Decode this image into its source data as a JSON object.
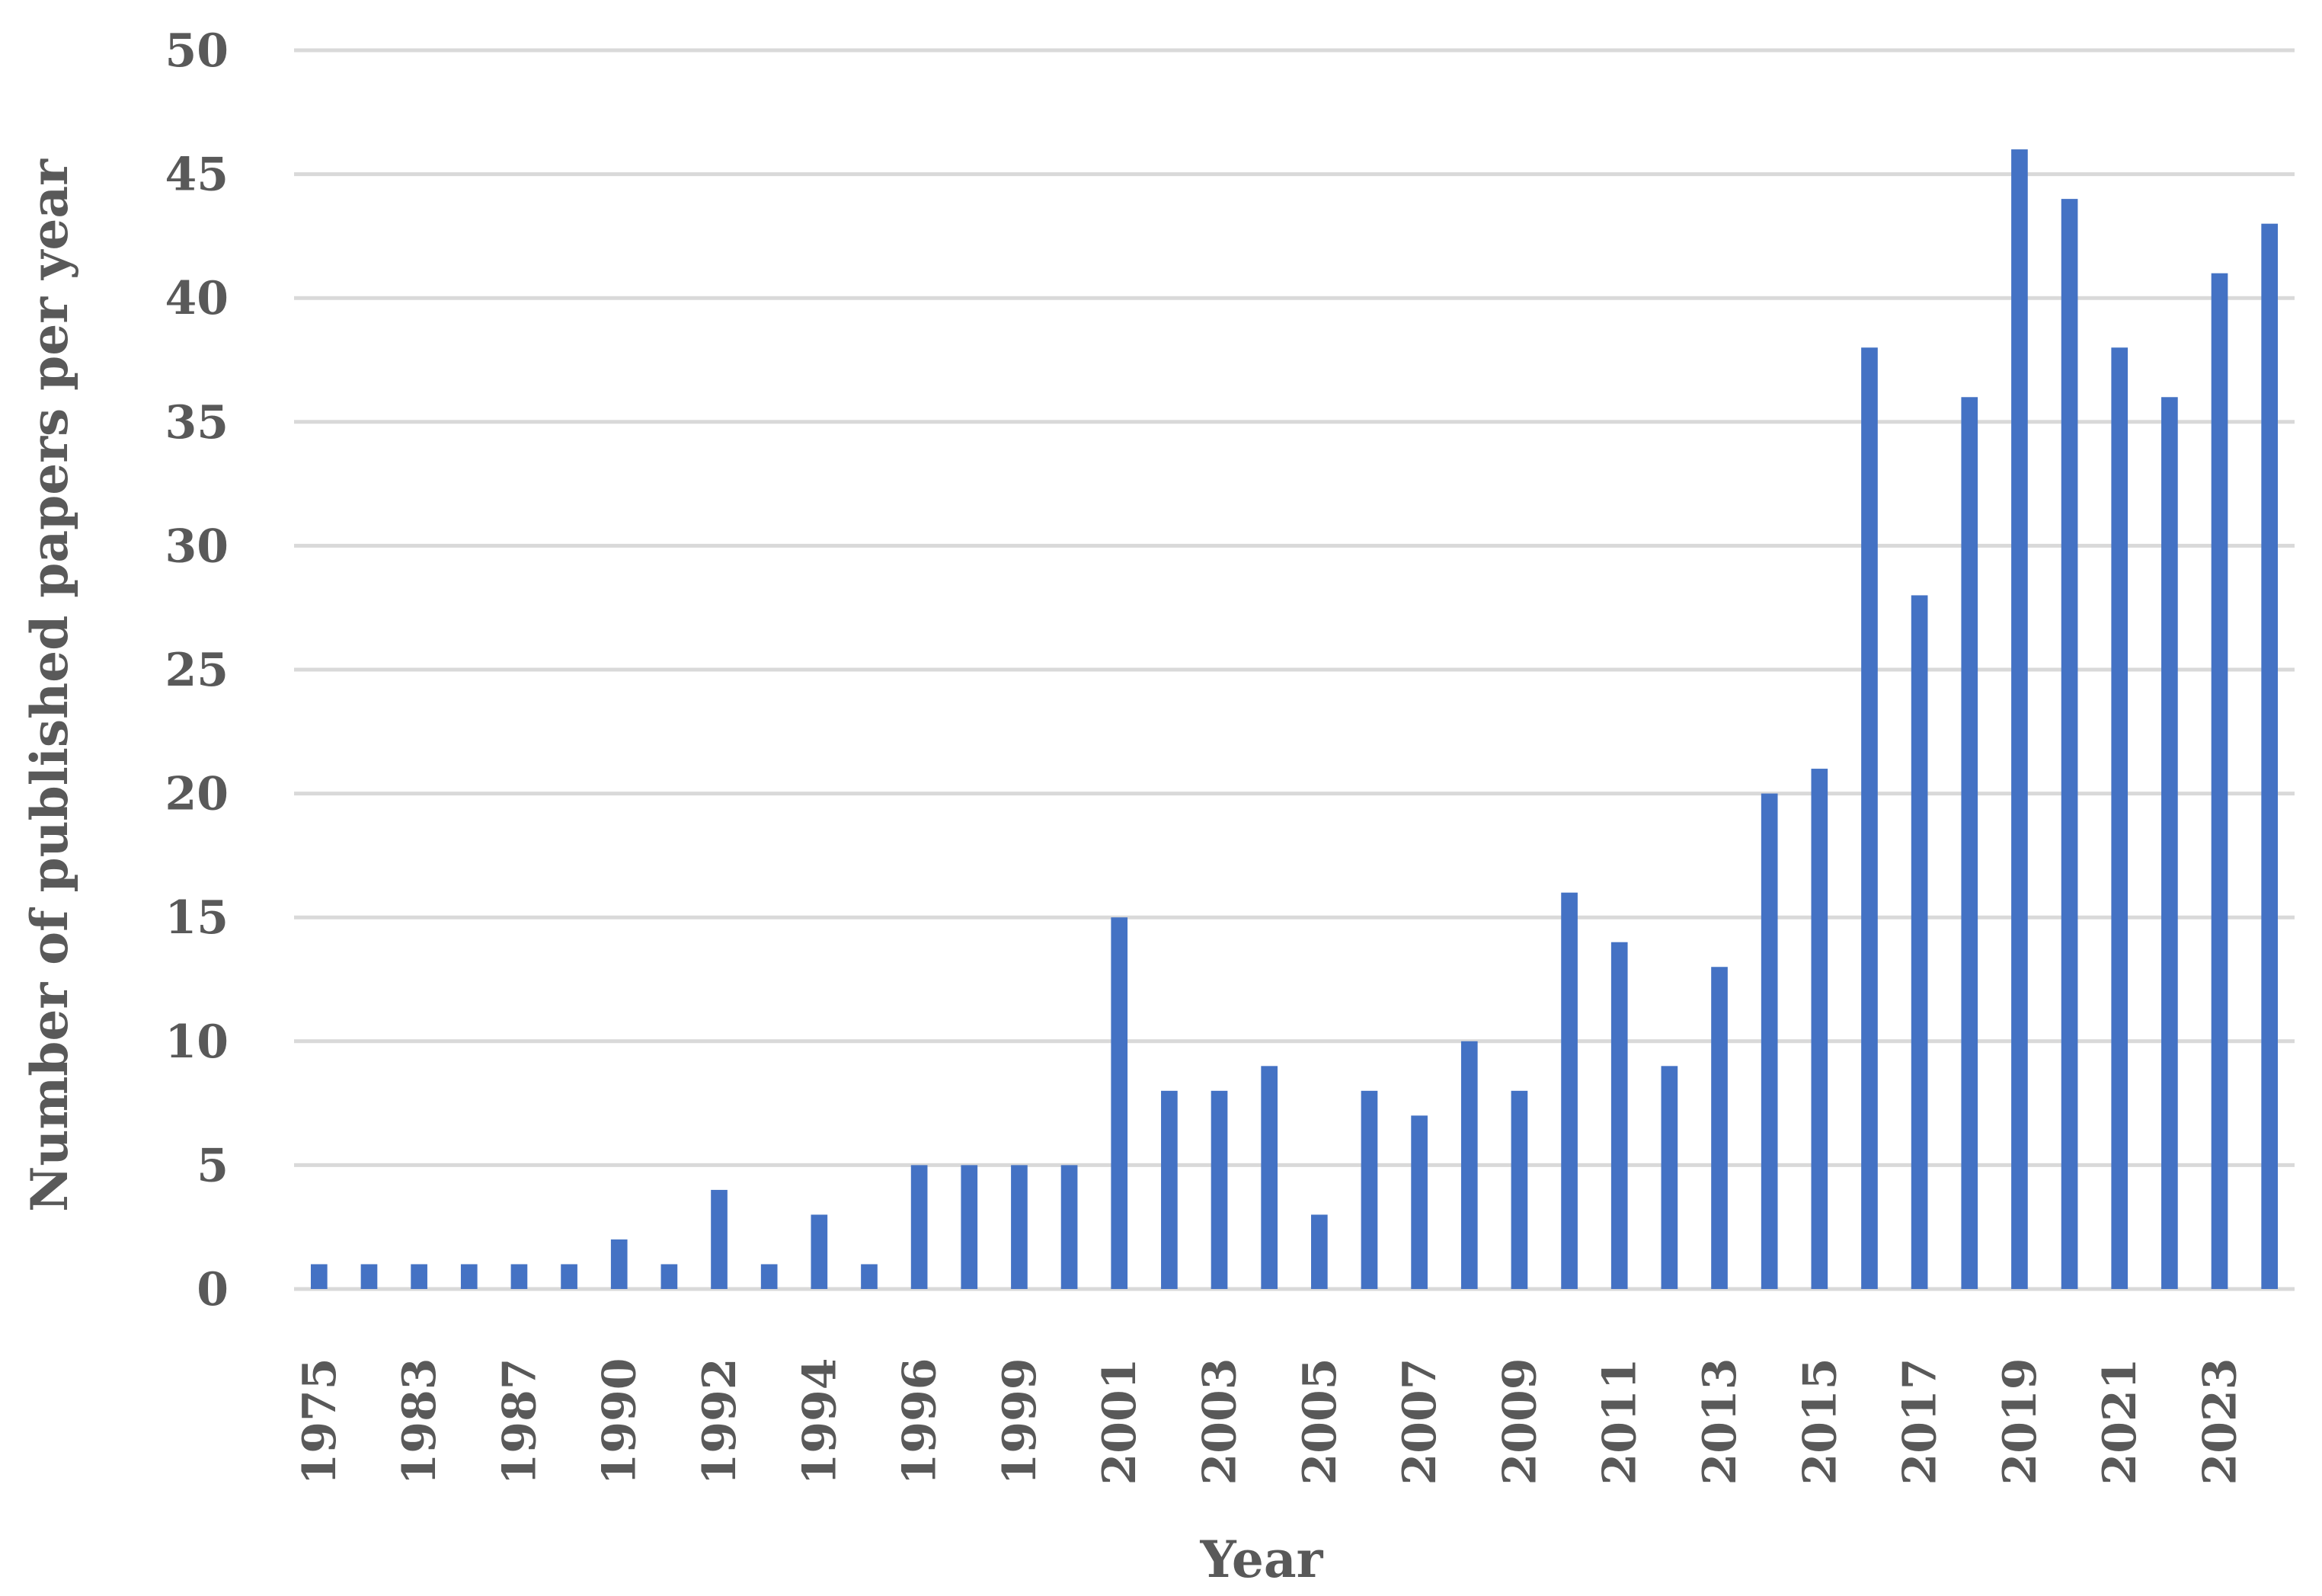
{
  "chart_data": {
    "type": "bar",
    "title": "",
    "xlabel": "Year",
    "ylabel": "Number of published papers per year",
    "ylim": [
      0,
      50
    ],
    "yticks": [
      0,
      5,
      10,
      15,
      20,
      25,
      30,
      35,
      40,
      45,
      50
    ],
    "grid": true,
    "legend": "none",
    "bar_color": "#4472c4",
    "gridline_color": "#d9d9d9",
    "text_color": "#595959",
    "categories": [
      "1975",
      "",
      "1983",
      "",
      "1987",
      "",
      "1990",
      "",
      "1992",
      "",
      "1994",
      "",
      "1996",
      "",
      "1999",
      "",
      "2001",
      "",
      "2003",
      "",
      "2005",
      "",
      "2007",
      "",
      "2009",
      "",
      "2011",
      "",
      "2013",
      "",
      "2015",
      "",
      "2017",
      "",
      "2019",
      "",
      "2021",
      "",
      "2023",
      ""
    ],
    "values": [
      1,
      1,
      1,
      1,
      1,
      1,
      2,
      1,
      4,
      1,
      3,
      1,
      5,
      5,
      5,
      5,
      15,
      8,
      8,
      9,
      3,
      8,
      7,
      10,
      8,
      16,
      14,
      9,
      13,
      20,
      21,
      38,
      28,
      36,
      46,
      44,
      38,
      36,
      41,
      43
    ]
  }
}
